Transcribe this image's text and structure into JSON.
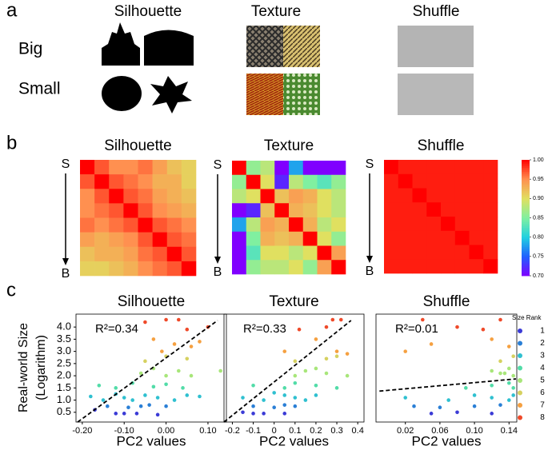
{
  "panel_labels": [
    "a",
    "b",
    "c"
  ],
  "panel_a": {
    "columns": [
      "Silhouette",
      "Texture",
      "Shuffle"
    ],
    "rows": [
      "Big",
      "Small"
    ]
  },
  "colorbar": {
    "zlim": [
      0.7,
      1.0
    ],
    "zticks": [
      {
        "value": 0.7,
        "label": "0.70"
      },
      {
        "value": 0.75,
        "label": "0.75"
      },
      {
        "value": 0.8,
        "label": "0.80"
      },
      {
        "value": 0.85,
        "label": "0.85"
      },
      {
        "value": 0.9,
        "label": "0.90"
      },
      {
        "value": 0.95,
        "label": "0.95"
      },
      {
        "value": 1.0,
        "label": "1.00"
      }
    ],
    "colormap": [
      "#8000ff",
      "#2060ff",
      "#20d0e0",
      "#80f0a0",
      "#e0e060",
      "#ff9050",
      "#ff0000"
    ]
  },
  "legend": {
    "title": "Size Rank",
    "ranks": [
      1,
      2,
      3,
      4,
      5,
      6,
      7,
      8
    ],
    "colors": [
      "#3b3bd6",
      "#2a7fd6",
      "#2fc0d0",
      "#52dca8",
      "#a8e67a",
      "#d6d160",
      "#f5a040",
      "#ef4a2a"
    ]
  },
  "chart_data": [
    {
      "type": "heatmap",
      "title": "Silhouette",
      "axis_start": "S",
      "axis_end": "B",
      "matrix": [
        [
          1,
          0.97,
          0.95,
          0.95,
          0.96,
          0.94,
          0.92,
          0.91
        ],
        [
          0.97,
          1,
          0.97,
          0.96,
          0.95,
          0.93,
          0.93,
          0.91
        ],
        [
          0.95,
          0.97,
          1,
          0.97,
          0.96,
          0.94,
          0.93,
          0.92
        ],
        [
          0.95,
          0.96,
          0.97,
          1,
          0.97,
          0.95,
          0.94,
          0.93
        ],
        [
          0.96,
          0.95,
          0.96,
          0.97,
          1,
          0.97,
          0.96,
          0.95
        ],
        [
          0.94,
          0.93,
          0.94,
          0.95,
          0.97,
          1,
          0.97,
          0.96
        ],
        [
          0.92,
          0.93,
          0.93,
          0.94,
          0.96,
          0.97,
          1,
          0.97
        ],
        [
          0.91,
          0.91,
          0.92,
          0.93,
          0.95,
          0.96,
          0.97,
          1
        ]
      ]
    },
    {
      "type": "heatmap",
      "title": "Texture",
      "axis_start": "S",
      "axis_end": "B",
      "matrix": [
        [
          1,
          0.86,
          0.88,
          0.7,
          0.78,
          0.7,
          0.7,
          0.7
        ],
        [
          0.86,
          1,
          0.9,
          0.72,
          0.88,
          0.85,
          0.83,
          0.86
        ],
        [
          0.88,
          0.9,
          1,
          0.92,
          0.94,
          0.93,
          0.9,
          0.88
        ],
        [
          0.7,
          0.72,
          0.92,
          1,
          0.93,
          0.92,
          0.9,
          0.88
        ],
        [
          0.78,
          0.88,
          0.94,
          0.93,
          1,
          0.93,
          0.88,
          0.9
        ],
        [
          0.7,
          0.85,
          0.93,
          0.92,
          0.93,
          1,
          0.9,
          0.86
        ],
        [
          0.7,
          0.83,
          0.9,
          0.9,
          0.88,
          0.9,
          1,
          0.94
        ],
        [
          0.7,
          0.86,
          0.88,
          0.88,
          0.9,
          0.86,
          0.94,
          1
        ]
      ]
    },
    {
      "type": "heatmap",
      "title": "Shuffle",
      "axis_start": "S",
      "axis_end": "B",
      "matrix": [
        [
          1,
          0.99,
          0.99,
          0.99,
          0.99,
          0.99,
          0.99,
          0.99
        ],
        [
          0.99,
          1,
          0.99,
          0.99,
          0.99,
          0.99,
          0.99,
          0.99
        ],
        [
          0.99,
          0.99,
          1,
          0.99,
          0.99,
          0.99,
          0.99,
          0.99
        ],
        [
          0.99,
          0.99,
          0.99,
          1,
          0.99,
          0.99,
          0.99,
          0.99
        ],
        [
          0.99,
          0.99,
          0.99,
          0.99,
          1,
          0.99,
          0.99,
          0.99
        ],
        [
          0.99,
          0.99,
          0.99,
          0.99,
          0.99,
          1,
          0.99,
          0.99
        ],
        [
          0.99,
          0.99,
          0.99,
          0.99,
          0.99,
          0.99,
          1,
          0.99
        ],
        [
          0.99,
          0.99,
          0.99,
          0.99,
          0.99,
          0.99,
          0.99,
          1
        ]
      ]
    },
    {
      "type": "scatter",
      "title": "Silhouette",
      "xlabel": "PC2 values",
      "ylabel": [
        "Real-world Size",
        "(Logarithm)"
      ],
      "annotation": "R²=0.34",
      "xlim": [
        -0.215,
        0.144
      ],
      "ylim": [
        0.1,
        4.53
      ],
      "xticks": [
        {
          "value": -0.2,
          "label": "-0.20"
        },
        {
          "value": -0.1,
          "label": "-0.10"
        },
        {
          "value": 0,
          "label": "0.00"
        },
        {
          "value": 0.1,
          "label": "0.10"
        }
      ],
      "yticks": [
        0.5,
        {
          "value": 1.0,
          "label": "1.0"
        },
        1.5,
        {
          "value": 2.0,
          "label": "2.0"
        },
        2.5,
        {
          "value": 3.0,
          "label": "3.0"
        },
        3.5,
        {
          "value": 4.0,
          "label": "4.0"
        }
      ],
      "x": [
        -0.12,
        -0.1,
        -0.07,
        -0.02,
        -0.17,
        -0.14,
        -0.09,
        -0.06,
        -0.04,
        0.0,
        -0.18,
        -0.15,
        -0.12,
        -0.1,
        -0.08,
        -0.05,
        -0.02,
        0.02,
        0.05,
        0.08,
        -0.16,
        -0.12,
        -0.08,
        -0.03,
        0.0,
        0.04,
        -0.06,
        -0.03,
        0.0,
        0.03,
        0.06,
        0.13,
        -0.05,
        0.0,
        0.05,
        -0.03,
        0.02,
        0.06,
        -0.01,
        0.08,
        0.0,
        0.03,
        0.05,
        -0.05,
        0.1
      ],
      "y": [
        0.45,
        0.45,
        0.45,
        0.4,
        0.6,
        0.75,
        0.7,
        0.75,
        0.8,
        0.75,
        1.15,
        1.0,
        1.25,
        1.1,
        1.0,
        1.2,
        1.1,
        1.0,
        1.2,
        1.15,
        1.6,
        1.5,
        1.7,
        1.55,
        1.65,
        1.5,
        2.1,
        2.3,
        2.0,
        2.2,
        2.0,
        2.2,
        2.6,
        2.8,
        2.7,
        3.5,
        3.3,
        3.2,
        3.0,
        3.4,
        4.3,
        4.3,
        3.9,
        4.2,
        4.0
      ],
      "rank": [
        1,
        1,
        1,
        1,
        1,
        2,
        2,
        2,
        2,
        2,
        3,
        3,
        3,
        3,
        3,
        3,
        3,
        3,
        3,
        3,
        4,
        4,
        4,
        4,
        4,
        4,
        5,
        5,
        5,
        5,
        5,
        5,
        6,
        6,
        6,
        7,
        7,
        7,
        7,
        7,
        8,
        8,
        8,
        8,
        8
      ],
      "fit": {
        "x": [
          -0.211,
          0.123
        ],
        "y": [
          0.1,
          4.27
        ]
      }
    },
    {
      "type": "scatter",
      "title": "Texture",
      "xlabel": "PC2 values",
      "annotation": "R²=0.33",
      "xlim": [
        -0.24,
        0.43
      ],
      "ylim": [
        0.1,
        4.53
      ],
      "xticks": [
        -0.2,
        -0.1,
        0,
        0.1,
        0.2,
        0.3,
        0.4
      ],
      "x": [
        -0.1,
        -0.05,
        0.05,
        -0.15,
        -0.1,
        0.0,
        0.05,
        0.1,
        -0.15,
        -0.05,
        0.05,
        0.1,
        0.15,
        0.2,
        0.0,
        -0.1,
        0.05,
        0.1,
        0.2,
        0.3,
        0.1,
        0.15,
        0.2,
        0.25,
        0.35,
        0.1,
        0.25,
        0.3,
        0.05,
        0.2,
        0.3,
        0.35,
        0.28,
        0.32,
        0.12,
        0.25
      ],
      "y": [
        0.45,
        0.45,
        0.45,
        0.5,
        0.75,
        0.7,
        0.8,
        0.75,
        1.1,
        1.0,
        1.2,
        1.1,
        1.0,
        1.2,
        1.3,
        1.6,
        1.5,
        1.7,
        1.6,
        1.5,
        2.0,
        2.2,
        2.3,
        2.1,
        2.0,
        2.6,
        2.7,
        2.8,
        3.0,
        3.5,
        3.0,
        2.9,
        4.3,
        4.3,
        3.9,
        4.0
      ],
      "rank": [
        1,
        1,
        1,
        1,
        2,
        2,
        2,
        2,
        3,
        3,
        3,
        3,
        3,
        3,
        3,
        4,
        4,
        4,
        4,
        4,
        5,
        5,
        5,
        5,
        5,
        6,
        6,
        6,
        7,
        7,
        7,
        7,
        8,
        8,
        8,
        8
      ],
      "fit": {
        "x": [
          -0.24,
          0.368
        ],
        "y": [
          0.1,
          4.27
        ]
      }
    },
    {
      "type": "scatter",
      "title": "Shuffle",
      "xlabel": "PC2 values",
      "annotation": "R²=0.01",
      "xlim": [
        -0.014,
        0.149
      ],
      "ylim": [
        0.1,
        4.53
      ],
      "xticks": [
        0.02,
        0.06,
        {
          "value": 0.1,
          "label": "0.10"
        },
        0.14
      ],
      "x": [
        0.05,
        0.08,
        0.12,
        0.06,
        0.1,
        0.13,
        0.03,
        0.02,
        0.07,
        0.1,
        0.12,
        0.14,
        0.145,
        0.09,
        0.12,
        0.14,
        0.145,
        0.13,
        0.14,
        0.145,
        0.12,
        0.135,
        0.13,
        0.145,
        0.02,
        0.12,
        0.14,
        0.05,
        0.04,
        0.08,
        0.13,
        0.11
      ],
      "y": [
        0.45,
        0.5,
        0.45,
        0.7,
        0.75,
        0.8,
        0.75,
        1.1,
        1.0,
        1.2,
        1.1,
        1.0,
        1.2,
        1.5,
        1.6,
        1.7,
        1.5,
        2.1,
        2.3,
        2.0,
        2.2,
        2.1,
        2.6,
        2.8,
        3.0,
        3.5,
        3.2,
        3.3,
        4.3,
        4.0,
        4.3,
        3.9
      ],
      "rank": [
        1,
        1,
        1,
        2,
        2,
        2,
        2,
        3,
        3,
        3,
        3,
        3,
        3,
        4,
        4,
        4,
        4,
        5,
        5,
        5,
        5,
        5,
        6,
        6,
        7,
        7,
        7,
        7,
        8,
        8,
        8,
        8
      ],
      "fit": {
        "x": [
          -0.01,
          0.148
        ],
        "y": [
          1.37,
          1.87
        ]
      }
    }
  ]
}
